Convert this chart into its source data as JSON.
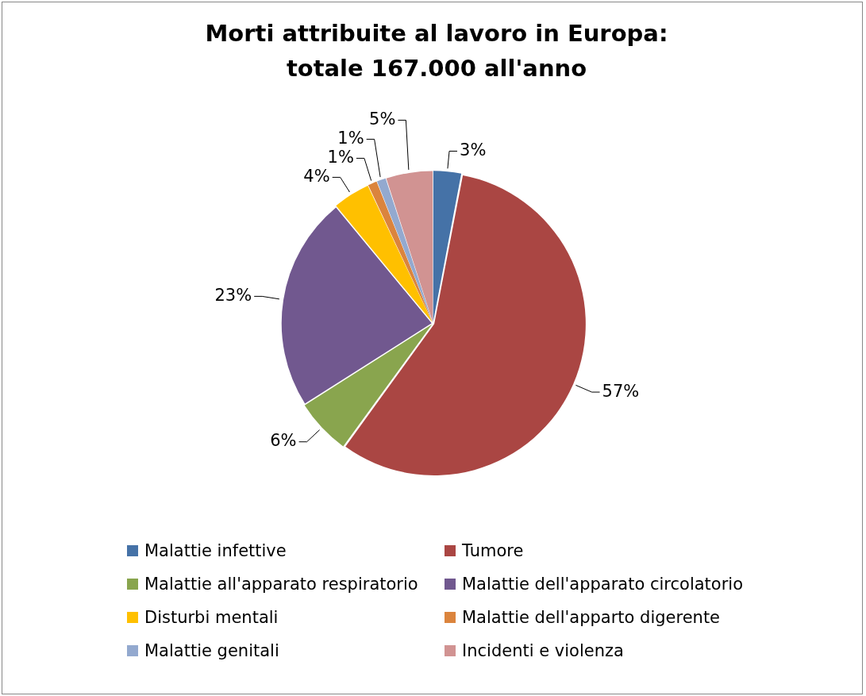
{
  "chart_data": {
    "type": "pie",
    "title": "Morti attribuite al lavoro in Europa: totale 167.000 all'anno",
    "categories": [
      "Malattie infettive",
      "Tumore",
      "Malattie all'apparato respiratorio",
      "Malattie dell'apparato circolatorio",
      "Disturbi mentali",
      "Malattie dell'apparto digerente",
      "Malattie genitali",
      "Incidenti e violenza"
    ],
    "values": [
      3,
      57,
      6,
      23,
      4,
      1,
      1,
      5
    ],
    "colors": [
      "#4572a7",
      "#aa4643",
      "#89a54e",
      "#71588f",
      "#ffc000",
      "#db843d",
      "#93a9cf",
      "#d19392"
    ],
    "value_labels": [
      "3%",
      "57%",
      "6%",
      "23%",
      "4%",
      "1%",
      "1%",
      "5%"
    ],
    "legend": "bottom"
  }
}
